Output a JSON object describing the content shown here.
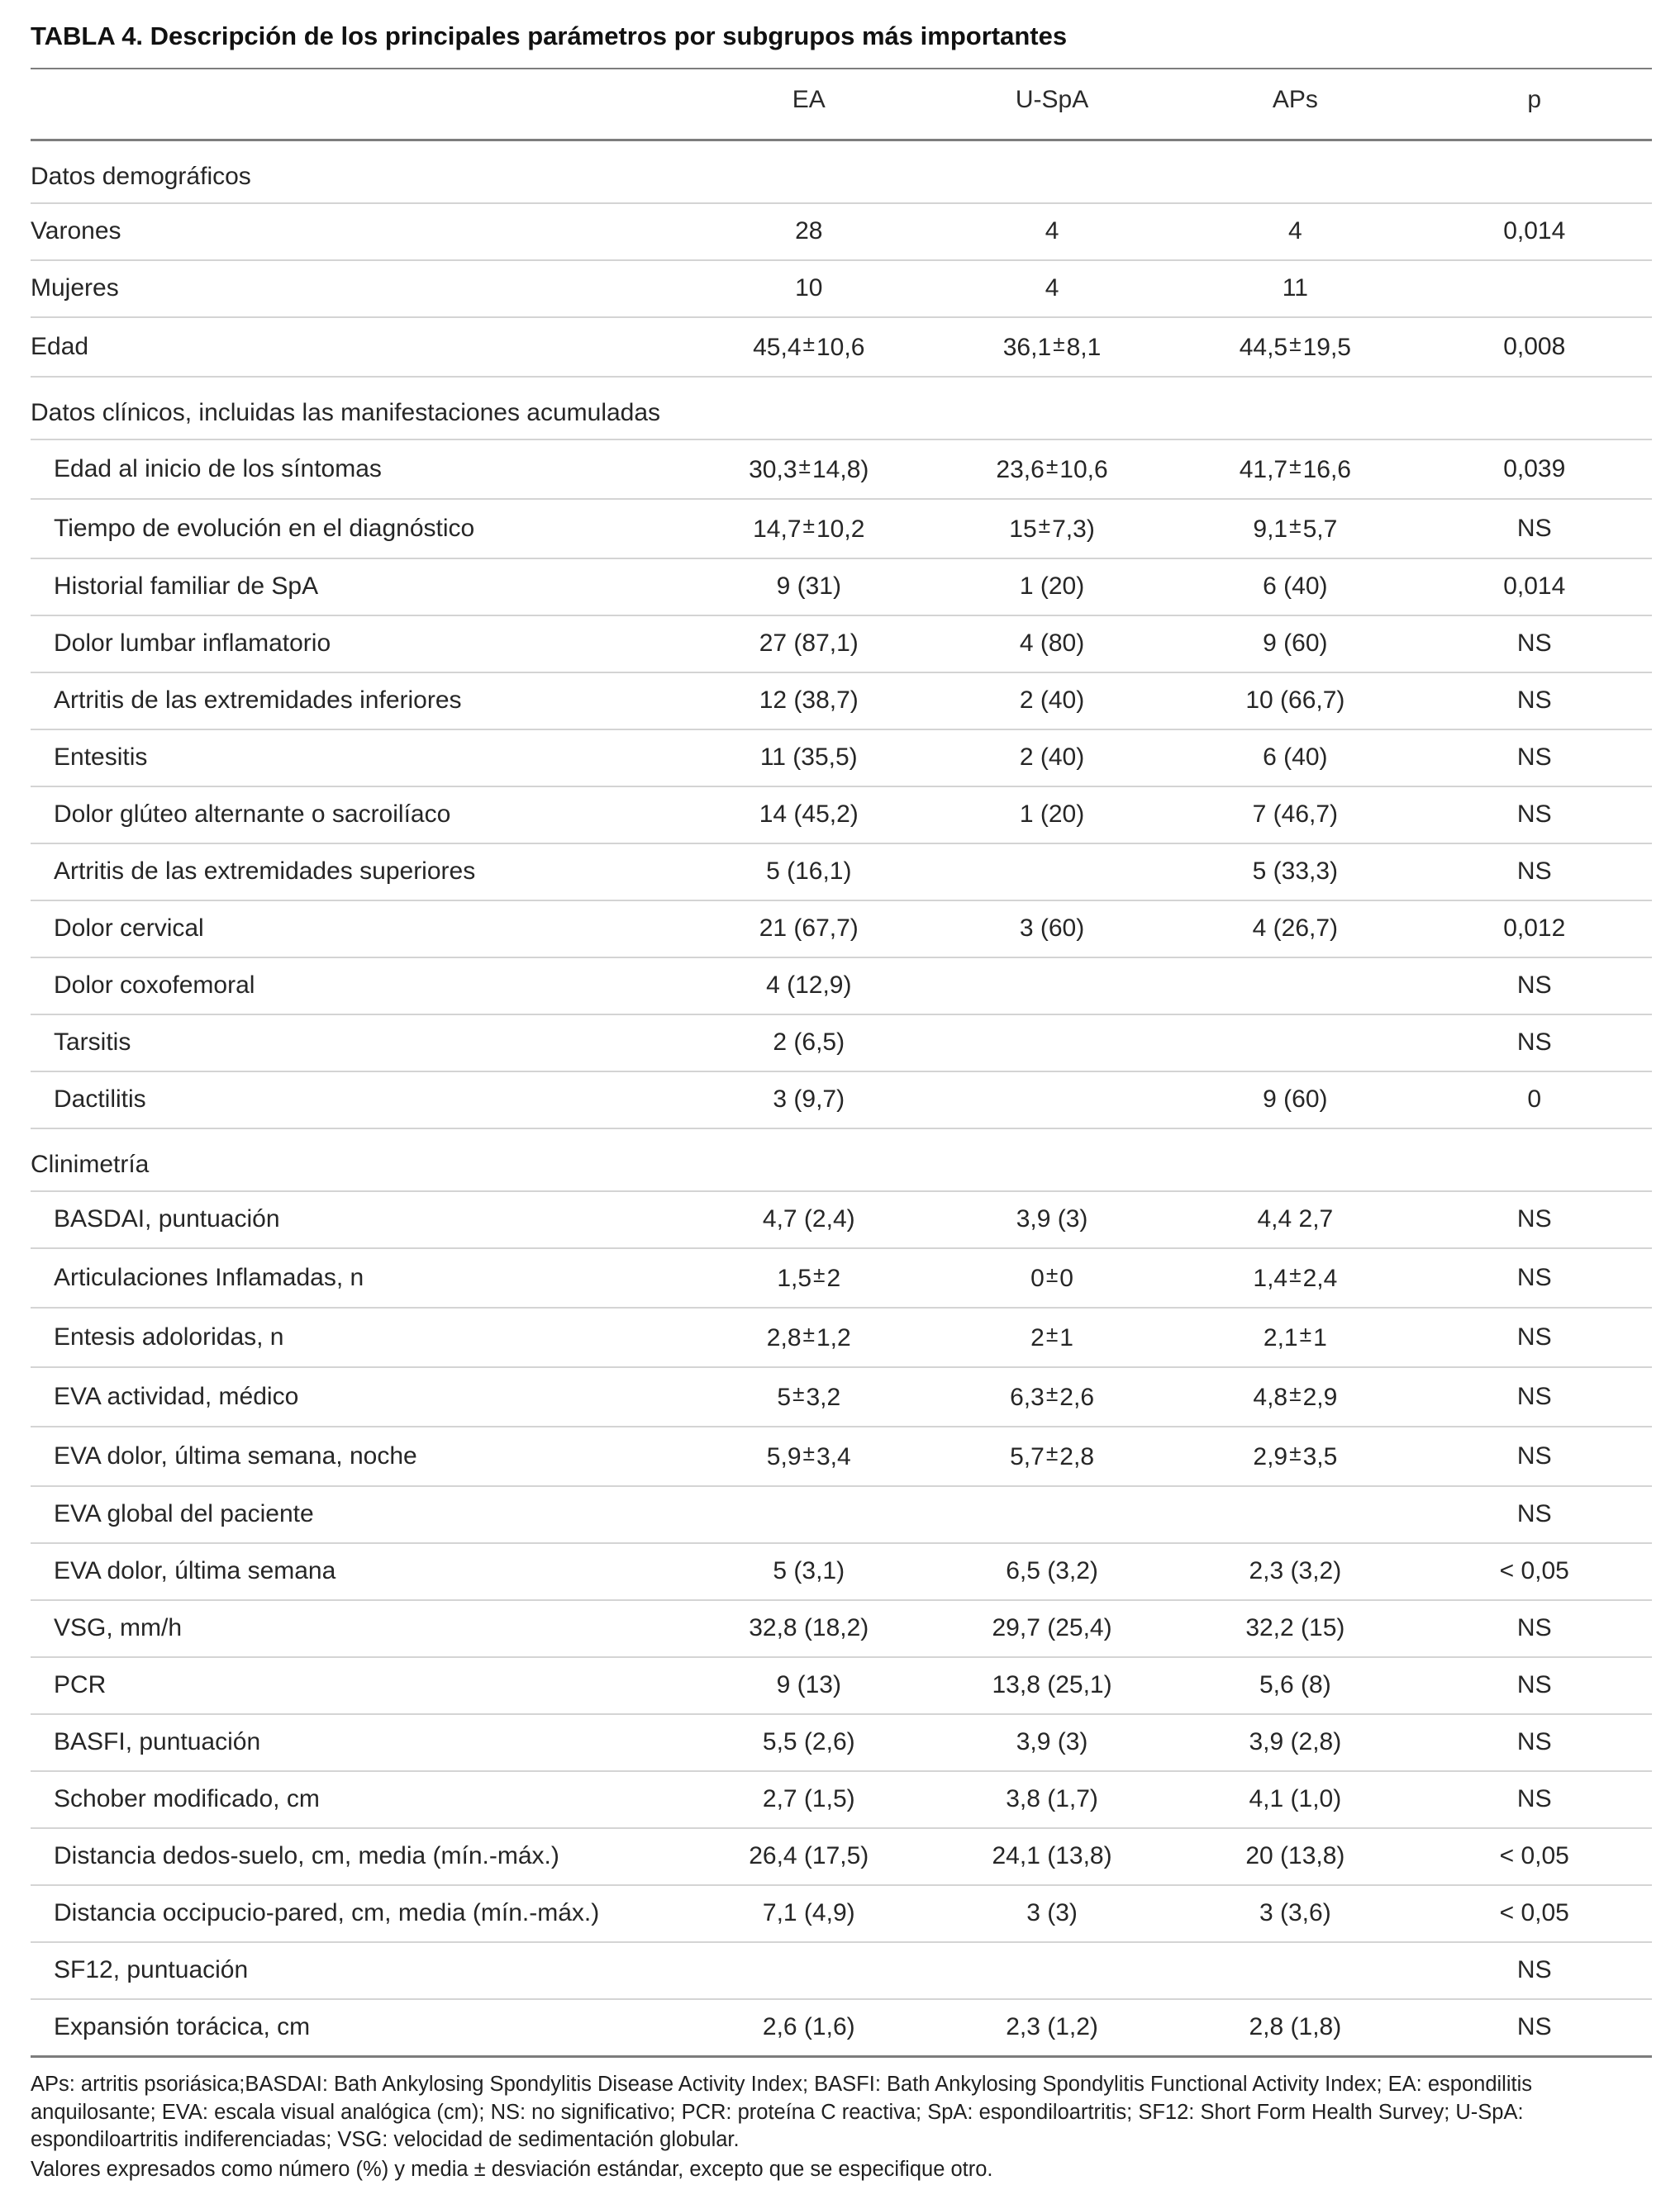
{
  "title": "TABLA 4. Descripción de los principales parámetros por subgrupos más importantes",
  "table": {
    "columns": [
      "",
      "EA",
      "U-SpA",
      "APs",
      "p"
    ],
    "column_keys": [
      "label",
      "ea",
      "u-spa",
      "aps",
      "p"
    ],
    "rows": [
      {
        "type": "section",
        "label": "Datos demográficos"
      },
      {
        "type": "data",
        "indent": false,
        "label": "Varones",
        "values": [
          "28",
          "4",
          "4",
          "0,014"
        ]
      },
      {
        "type": "data",
        "indent": false,
        "label": "Mujeres",
        "values": [
          "10",
          "4",
          "11",
          ""
        ]
      },
      {
        "type": "data",
        "indent": false,
        "label": "Edad",
        "values": [
          "45,4 ± 10,6",
          "36,1 ± 8,1",
          "44,5 ± 19,5",
          "0,008"
        ]
      },
      {
        "type": "section",
        "label": "Datos clínicos, incluidas las manifestaciones acumuladas"
      },
      {
        "type": "data",
        "indent": true,
        "label": "Edad al inicio de los síntomas",
        "values": [
          "30,3 ± 14,8)",
          "23,6 ± 10,6",
          "41,7 ± 16,6",
          "0,039"
        ]
      },
      {
        "type": "data",
        "indent": true,
        "label": "Tiempo de evolución en el diagnóstico",
        "values": [
          "14,7 ± 10,2",
          "15 ± 7,3)",
          "9,1 ± 5,7",
          "NS"
        ]
      },
      {
        "type": "data",
        "indent": true,
        "label": "Historial familiar de SpA",
        "values": [
          "9 (31)",
          "1 (20)",
          "6 (40)",
          "0,014"
        ]
      },
      {
        "type": "data",
        "indent": true,
        "label": "Dolor lumbar inflamatorio",
        "values": [
          "27 (87,1)",
          "4 (80)",
          "9 (60)",
          "NS"
        ]
      },
      {
        "type": "data",
        "indent": true,
        "label": "Artritis de las extremidades inferiores",
        "values": [
          "12 (38,7)",
          "2 (40)",
          "10 (66,7)",
          "NS"
        ]
      },
      {
        "type": "data",
        "indent": true,
        "label": "Entesitis",
        "values": [
          "11 (35,5)",
          "2 (40)",
          "6 (40)",
          "NS"
        ]
      },
      {
        "type": "data",
        "indent": true,
        "label": "Dolor glúteo alternante o sacroilíaco",
        "values": [
          "14 (45,2)",
          "1 (20)",
          "7 (46,7)",
          "NS"
        ]
      },
      {
        "type": "data",
        "indent": true,
        "label": "Artritis de las extremidades superiores",
        "values": [
          "5 (16,1)",
          "",
          "5 (33,3)",
          "NS"
        ]
      },
      {
        "type": "data",
        "indent": true,
        "label": "Dolor cervical",
        "values": [
          "21 (67,7)",
          "3 (60)",
          "4 (26,7)",
          "0,012"
        ]
      },
      {
        "type": "data",
        "indent": true,
        "label": "Dolor coxofemoral",
        "values": [
          "4 (12,9)",
          "",
          "",
          "NS"
        ]
      },
      {
        "type": "data",
        "indent": true,
        "label": "Tarsitis",
        "values": [
          "2 (6,5)",
          "",
          "",
          "NS"
        ]
      },
      {
        "type": "data",
        "indent": true,
        "label": "Dactilitis",
        "values": [
          "3 (9,7)",
          "",
          "9 (60)",
          "0"
        ]
      },
      {
        "type": "section",
        "label": "Clinimetría"
      },
      {
        "type": "data",
        "indent": true,
        "label": "BASDAI, puntuación",
        "values": [
          "4,7 (2,4)",
          "3,9 (3)",
          "4,4 2,7",
          "NS"
        ]
      },
      {
        "type": "data",
        "indent": true,
        "label": "Articulaciones Inflamadas, n",
        "values": [
          "1,5 ± 2",
          "0 ± 0",
          "1,4 ± 2,4",
          "NS"
        ]
      },
      {
        "type": "data",
        "indent": true,
        "label": "Entesis adoloridas, n",
        "values": [
          "2,8 ± 1,2",
          "2 ± 1",
          "2,1 ± 1",
          "NS"
        ]
      },
      {
        "type": "data",
        "indent": true,
        "label": "EVA actividad, médico",
        "values": [
          "5 ± 3,2",
          "6,3 ± 2,6",
          "4,8 ± 2,9",
          "NS"
        ]
      },
      {
        "type": "data",
        "indent": true,
        "label": "EVA dolor, última semana, noche",
        "values": [
          "5,9 ± 3,4",
          "5,7 ± 2,8",
          "2,9 ± 3,5",
          "NS"
        ]
      },
      {
        "type": "data",
        "indent": true,
        "label": "EVA global del paciente",
        "values": [
          "",
          "",
          "",
          "NS"
        ]
      },
      {
        "type": "data",
        "indent": true,
        "label": "EVA dolor, última semana",
        "values": [
          "5 (3,1)",
          "6,5 (3,2)",
          "2,3 (3,2)",
          "< 0,05"
        ]
      },
      {
        "type": "data",
        "indent": true,
        "label": "VSG, mm/h",
        "values": [
          "32,8 (18,2)",
          "29,7 (25,4)",
          "32,2 (15)",
          "NS"
        ]
      },
      {
        "type": "data",
        "indent": true,
        "label": "PCR",
        "values": [
          "9 (13)",
          "13,8 (25,1)",
          "5,6 (8)",
          "NS"
        ]
      },
      {
        "type": "data",
        "indent": true,
        "label": "BASFI, puntuación",
        "values": [
          "5,5 (2,6)",
          "3,9 (3)",
          "3,9 (2,8)",
          "NS"
        ]
      },
      {
        "type": "data",
        "indent": true,
        "label": "Schober modificado, cm",
        "values": [
          "2,7 (1,5)",
          "3,8 (1,7)",
          "4,1 (1,0)",
          "NS"
        ]
      },
      {
        "type": "data",
        "indent": true,
        "label": "Distancia dedos-suelo, cm, media (mín.-máx.)",
        "values": [
          "26,4 (17,5)",
          "24,1 (13,8)",
          "20 (13,8)",
          "< 0,05"
        ]
      },
      {
        "type": "data",
        "indent": true,
        "label": "Distancia occipucio-pared, cm, media (mín.-máx.)",
        "values": [
          "7,1 (4,9)",
          "3 (3)",
          "3 (3,6)",
          "< 0,05"
        ]
      },
      {
        "type": "data",
        "indent": true,
        "label": "SF12, puntuación",
        "values": [
          "",
          "",
          "",
          "NS"
        ]
      },
      {
        "type": "data",
        "indent": true,
        "label": "Expansión torácica, cm",
        "values": [
          "2,6 (1,6)",
          "2,3 (1,2)",
          "2,8 (1,8)",
          "NS"
        ]
      }
    ]
  },
  "footnotes": {
    "abbreviations": "APs: artritis psoriásica;BASDAI: Bath Ankylosing Spondylitis Disease Activity Index; BASFI: Bath Ankylosing Spondylitis Functional Activity Index; EA: espondilitis anquilosante; EVA: escala visual analógica (cm); NS: no significativo; PCR: proteína C reactiva; SpA: espondiloartritis; SF12: Short Form Health Survey; U-SpA: espondiloartritis indiferenciadas; VSG: velocidad de sedimentación globular.",
    "values_note": "Valores expresados como número (%) y media ± desviación estándar, excepto que se especifique otro."
  }
}
